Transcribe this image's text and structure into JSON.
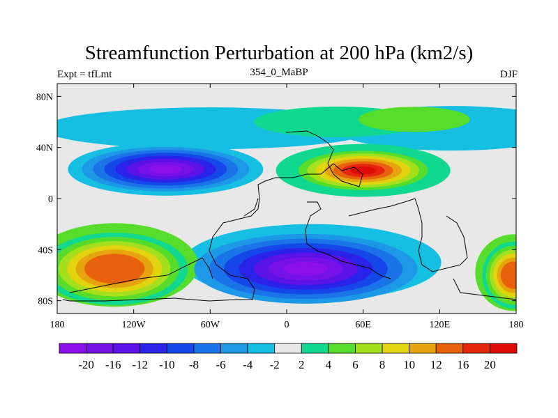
{
  "chart_data": {
    "type": "contour map",
    "title": "Streamfunction Perturbation at 200 hPa (km2/s)",
    "subtitle_left": "Expt = tfLmt",
    "subtitle_center": "354_0_MaBP",
    "subtitle_right": "DJF",
    "x_ticks": [
      "180",
      "120W",
      "60W",
      "0",
      "60E",
      "120E",
      "180"
    ],
    "x_tick_values": [
      -180,
      -120,
      -60,
      0,
      60,
      120,
      180
    ],
    "y_ticks": [
      "80N",
      "40N",
      "0",
      "40S",
      "80S"
    ],
    "y_tick_values": [
      80,
      40,
      0,
      -40,
      -80
    ],
    "xlim": [
      -180,
      180
    ],
    "ylim": [
      -90,
      90
    ],
    "colorbar": {
      "levels": [
        "-20",
        "-16",
        "-12",
        "-10",
        "-8",
        "-6",
        "-4",
        "-2",
        "2",
        "4",
        "6",
        "8",
        "10",
        "12",
        "16",
        "20"
      ],
      "colors": [
        "#8a0fe8",
        "#7510e8",
        "#5a12e6",
        "#2a22e8",
        "#1446e8",
        "#1a74e8",
        "#1c98e6",
        "#16bee2",
        "#e8e8e8",
        "#10d890",
        "#56dc2a",
        "#a4e01e",
        "#e2d40e",
        "#e6a40e",
        "#e8620e",
        "#e4260e",
        "#e00a0a"
      ]
    },
    "features": [
      {
        "label": "negative center",
        "lon": -95,
        "lat": 23,
        "peak": -20
      },
      {
        "label": "positive center",
        "lon": 60,
        "lat": 22,
        "peak": 20
      },
      {
        "label": "negative center",
        "lon": 15,
        "lat": -55,
        "peak": -20
      },
      {
        "label": "positive center",
        "lon": -135,
        "lat": -55,
        "peak": 16
      },
      {
        "label": "positive center",
        "lon": 178,
        "lat": -60,
        "peak": 16
      }
    ]
  }
}
